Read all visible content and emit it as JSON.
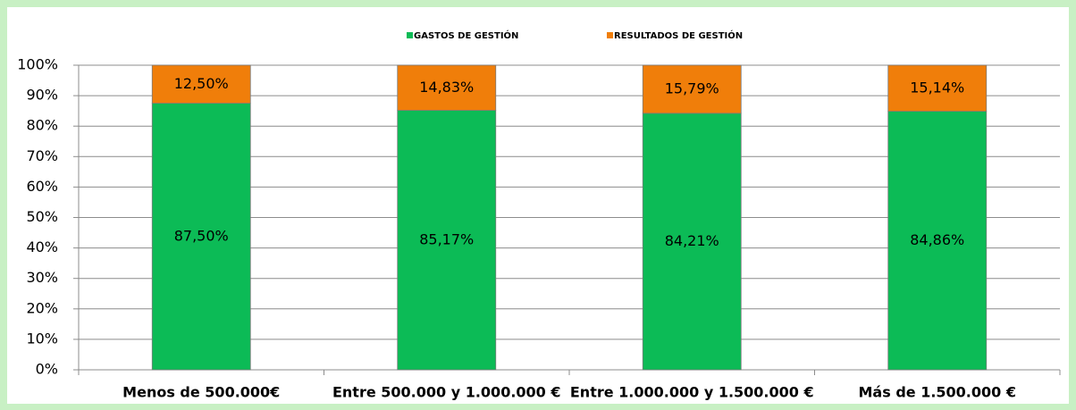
{
  "chart_data": {
    "type": "stacked_bar_percent",
    "categories": [
      "Menos de 500.000€",
      "Entre 500.000  y 1.000.000  €",
      "Entre 1.000.000  y 1.500.000  €",
      "Más de 1.500.000  €"
    ],
    "series": [
      {
        "name": "GASTOS DE GESTIÓN",
        "color": "#0cbb56",
        "values": [
          87.5,
          85.17,
          84.21,
          84.86
        ],
        "value_labels": [
          "87,50%",
          "85,17%",
          "84,21%",
          "84,86%"
        ]
      },
      {
        "name": "RESULTADOS DE GESTIÓN",
        "color": "#f07e0a",
        "values": [
          12.5,
          14.83,
          15.79,
          15.14
        ],
        "value_labels": [
          "12,50%",
          "14,83%",
          "15,79%",
          "15,14%"
        ]
      }
    ],
    "ylim": [
      0,
      100
    ],
    "yticks": [
      {
        "value": 0,
        "label": "0%"
      },
      {
        "value": 10,
        "label": "10%"
      },
      {
        "value": 20,
        "label": "20%"
      },
      {
        "value": 30,
        "label": "30%"
      },
      {
        "value": 40,
        "label": "40%"
      },
      {
        "value": 50,
        "label": "50%"
      },
      {
        "value": 60,
        "label": "60%"
      },
      {
        "value": 70,
        "label": "70%"
      },
      {
        "value": 80,
        "label": "80%"
      },
      {
        "value": 90,
        "label": "90%"
      },
      {
        "value": 100,
        "label": "100%"
      }
    ],
    "grid": true,
    "legend": "top"
  }
}
